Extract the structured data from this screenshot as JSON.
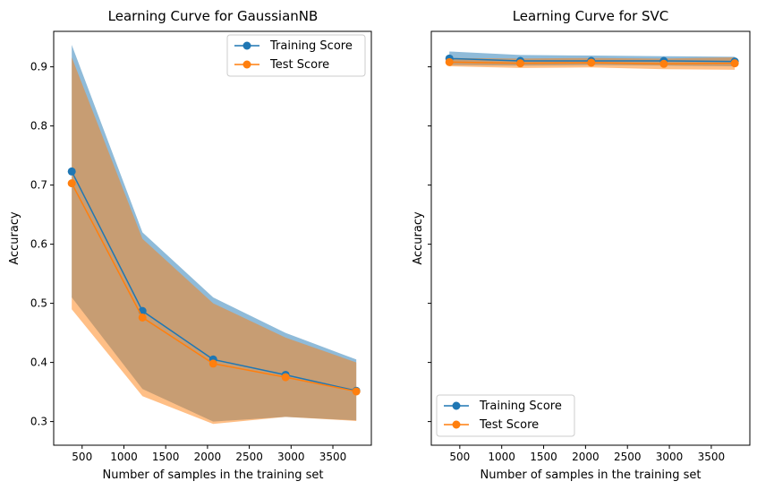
{
  "chart_data": [
    {
      "type": "line",
      "title": "Learning Curve for GaussianNB",
      "xlabel": "Number of samples in the training set",
      "ylabel": "Accuracy",
      "xlim": [
        160,
        3960
      ],
      "ylim": [
        0.26,
        0.96
      ],
      "xticks": [
        500,
        1000,
        1500,
        2000,
        2500,
        3000,
        3500
      ],
      "yticks": [
        0.3,
        0.4,
        0.5,
        0.6,
        0.7,
        0.8,
        0.9
      ],
      "ytick_labels_visible": true,
      "legend": "top-right",
      "x": [
        376,
        1222,
        2068,
        2934,
        3780
      ],
      "series": [
        {
          "name": "Training Score",
          "color": "#1f77b4",
          "values": [
            0.723,
            0.487,
            0.405,
            0.379,
            0.352
          ],
          "band_lower": [
            0.51,
            0.355,
            0.3,
            0.308,
            0.302
          ],
          "band_upper": [
            0.937,
            0.62,
            0.51,
            0.45,
            0.405
          ]
        },
        {
          "name": "Test Score",
          "color": "#ff7f0e",
          "values": [
            0.703,
            0.476,
            0.398,
            0.375,
            0.351
          ],
          "band_lower": [
            0.49,
            0.343,
            0.296,
            0.308,
            0.301
          ],
          "band_upper": [
            0.916,
            0.609,
            0.5,
            0.442,
            0.4
          ]
        }
      ]
    },
    {
      "type": "line",
      "title": "Learning Curve for SVC",
      "xlabel": "Number of samples in the training set",
      "ylabel": "Accuracy",
      "xlim": [
        160,
        3960
      ],
      "ylim": [
        0.26,
        0.96
      ],
      "xticks": [
        500,
        1000,
        1500,
        2000,
        2500,
        3000,
        3500
      ],
      "yticks": [
        0.3,
        0.4,
        0.5,
        0.6,
        0.7,
        0.8,
        0.9
      ],
      "ytick_labels_visible": false,
      "legend": "bottom-left",
      "x": [
        376,
        1222,
        2068,
        2934,
        3780
      ],
      "series": [
        {
          "name": "Training Score",
          "color": "#1f77b4",
          "values": [
            0.914,
            0.91,
            0.91,
            0.91,
            0.909
          ],
          "band_lower": [
            0.903,
            0.902,
            0.903,
            0.902,
            0.901
          ],
          "band_upper": [
            0.926,
            0.92,
            0.919,
            0.918,
            0.917
          ]
        },
        {
          "name": "Test Score",
          "color": "#ff7f0e",
          "values": [
            0.908,
            0.906,
            0.907,
            0.905,
            0.906
          ],
          "band_lower": [
            0.901,
            0.898,
            0.899,
            0.896,
            0.895
          ],
          "band_upper": [
            0.915,
            0.914,
            0.915,
            0.914,
            0.916
          ]
        }
      ]
    }
  ]
}
